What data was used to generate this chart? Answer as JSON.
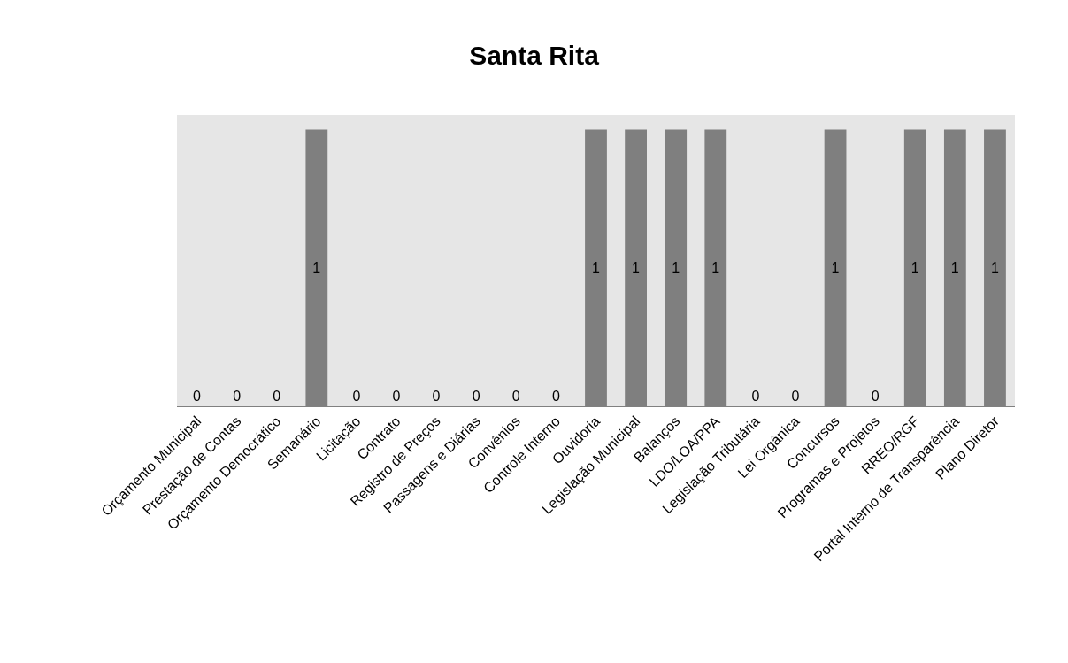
{
  "chart_data": {
    "type": "bar",
    "title": "Santa Rita",
    "categories": [
      "Orçamento Municipal",
      "Prestação de Contas",
      "Orçamento Democrático",
      "Semanário",
      "Licitação",
      "Contrato",
      "Registro de Preços",
      "Passagens e Diárias",
      "Convênios",
      "Controle Interno",
      "Ouvidoria",
      "Legislação Municipal",
      "Balanços",
      "LDO/LOA/PPA",
      "Legislação Tributária",
      "Lei Orgânica",
      "Concursos",
      "Programas e Projetos",
      "RREO/RGF",
      "Portal Interno de Transparência",
      "Plano Diretor"
    ],
    "values": [
      0,
      0,
      0,
      1,
      0,
      0,
      0,
      0,
      0,
      0,
      1,
      1,
      1,
      1,
      0,
      0,
      1,
      0,
      1,
      1,
      1
    ],
    "color": "#7f7f7f",
    "data_labels": true,
    "grid": false,
    "legend": false
  }
}
